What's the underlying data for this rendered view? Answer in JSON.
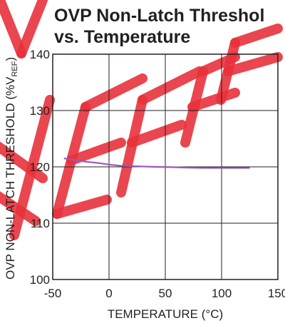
{
  "chart_data": {
    "type": "line",
    "title_line1": "OVP Non-Latch Threshol",
    "title_line2": "vs. Temperature",
    "xlabel": "TEMPERATURE (°C)",
    "ylabel_main": "OVP NON-LATCH THRESHOLD (%V",
    "ylabel_sub": "REF",
    "ylabel_end": ")",
    "xlim": [
      -50,
      150
    ],
    "ylim": [
      100,
      140
    ],
    "x_ticks": [
      -50,
      0,
      50,
      100,
      150
    ],
    "y_ticks": [
      100,
      110,
      120,
      130,
      140
    ],
    "grid": true,
    "series": [
      {
        "color": "#9b59b6",
        "x": [
          -40,
          -30,
          -20,
          -10,
          0,
          10,
          25,
          40,
          55,
          70,
          85,
          100,
          115,
          125
        ],
        "y": [
          121.5,
          121.2,
          120.9,
          120.7,
          120.4,
          120.2,
          120.1,
          120.0,
          119.95,
          119.85,
          119.8,
          119.8,
          119.8,
          119.8
        ]
      }
    ],
    "watermark_color": "#e8323c"
  }
}
